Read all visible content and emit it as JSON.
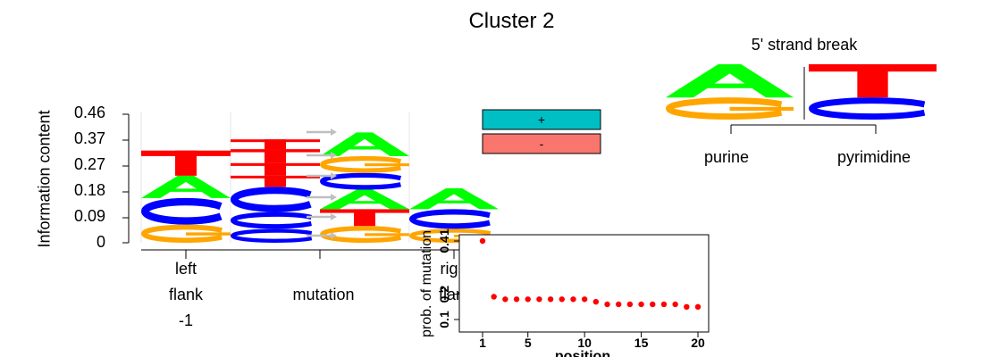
{
  "colors": {
    "A": "#00ff00",
    "C": "#0000ff",
    "G": "#ffa500",
    "T": "#ff0000",
    "plus": "#00bfc4",
    "minus": "#f8766d",
    "arrow": "#bfbfbf",
    "point": "#ff0000"
  },
  "chart_data": [
    {
      "type": "sequence-logo",
      "title": "Cluster 2",
      "ylabel": "Information content",
      "yticks": [
        "0.46",
        "0.37",
        "0.27",
        "0.18",
        "0.09",
        "0"
      ],
      "ylim": [
        0,
        0.46
      ],
      "x_groups": [
        {
          "lines": [
            "left",
            "flank",
            "-1"
          ]
        },
        {
          "lines": [
            "mutation"
          ]
        },
        {
          "lines": [
            "right",
            "flank"
          ]
        }
      ],
      "legend": [
        {
          "label": "+",
          "color": "#00bfc4"
        },
        {
          "label": "-",
          "color": "#f8766d"
        }
      ],
      "positions": [
        {
          "name": "left flank -1",
          "stack": [
            [
              "G",
              0.065
            ],
            [
              "C",
              0.095
            ],
            [
              "A",
              0.08
            ],
            [
              "T",
              0.09
            ]
          ]
        },
        {
          "name": "mutation ref",
          "stack": [
            [
              "C",
              0.05
            ],
            [
              "C",
              0.06
            ],
            [
              "C",
              0.09
            ],
            [
              "T",
              0.04
            ],
            [
              "T",
              0.045
            ],
            [
              "T",
              0.05
            ],
            [
              "T",
              0.035
            ]
          ]
        },
        {
          "name": "mutation alt",
          "stack": [
            [
              "G",
              0.06
            ],
            [
              "T",
              0.06
            ],
            [
              "A",
              0.07
            ],
            [
              "C",
              0.06
            ],
            [
              "G",
              0.06
            ],
            [
              "A",
              0.085
            ]
          ]
        },
        {
          "name": "right flank",
          "stack": [
            [
              "G",
              0.05
            ],
            [
              "C",
              0.07
            ],
            [
              "A",
              0.075
            ],
            [
              "T",
              0.0
            ]
          ]
        }
      ]
    },
    {
      "type": "logo",
      "title": "5' strand break",
      "groups": [
        {
          "label": "purine",
          "stack": [
            [
              "G",
              0.4
            ],
            [
              "A",
              0.6
            ]
          ]
        },
        {
          "label": "pyrimidine",
          "stack": [
            [
              "C",
              0.4
            ],
            [
              "T",
              0.6
            ]
          ]
        }
      ]
    },
    {
      "type": "scatter",
      "xlabel": "position",
      "ylabel": "prob. of mutation",
      "xticks": [
        "1",
        "5",
        "10",
        "15",
        "20"
      ],
      "yticks": [
        "0.41",
        "0.2",
        "0.1"
      ],
      "x": [
        1,
        2,
        3,
        4,
        5,
        6,
        7,
        8,
        9,
        10,
        11,
        12,
        13,
        14,
        15,
        16,
        17,
        18,
        19,
        20
      ],
      "y": [
        0.41,
        0.19,
        0.18,
        0.18,
        0.18,
        0.18,
        0.18,
        0.18,
        0.18,
        0.18,
        0.17,
        0.16,
        0.16,
        0.16,
        0.16,
        0.16,
        0.16,
        0.16,
        0.15,
        0.15
      ],
      "ylim": [
        0.0,
        0.5
      ]
    }
  ]
}
